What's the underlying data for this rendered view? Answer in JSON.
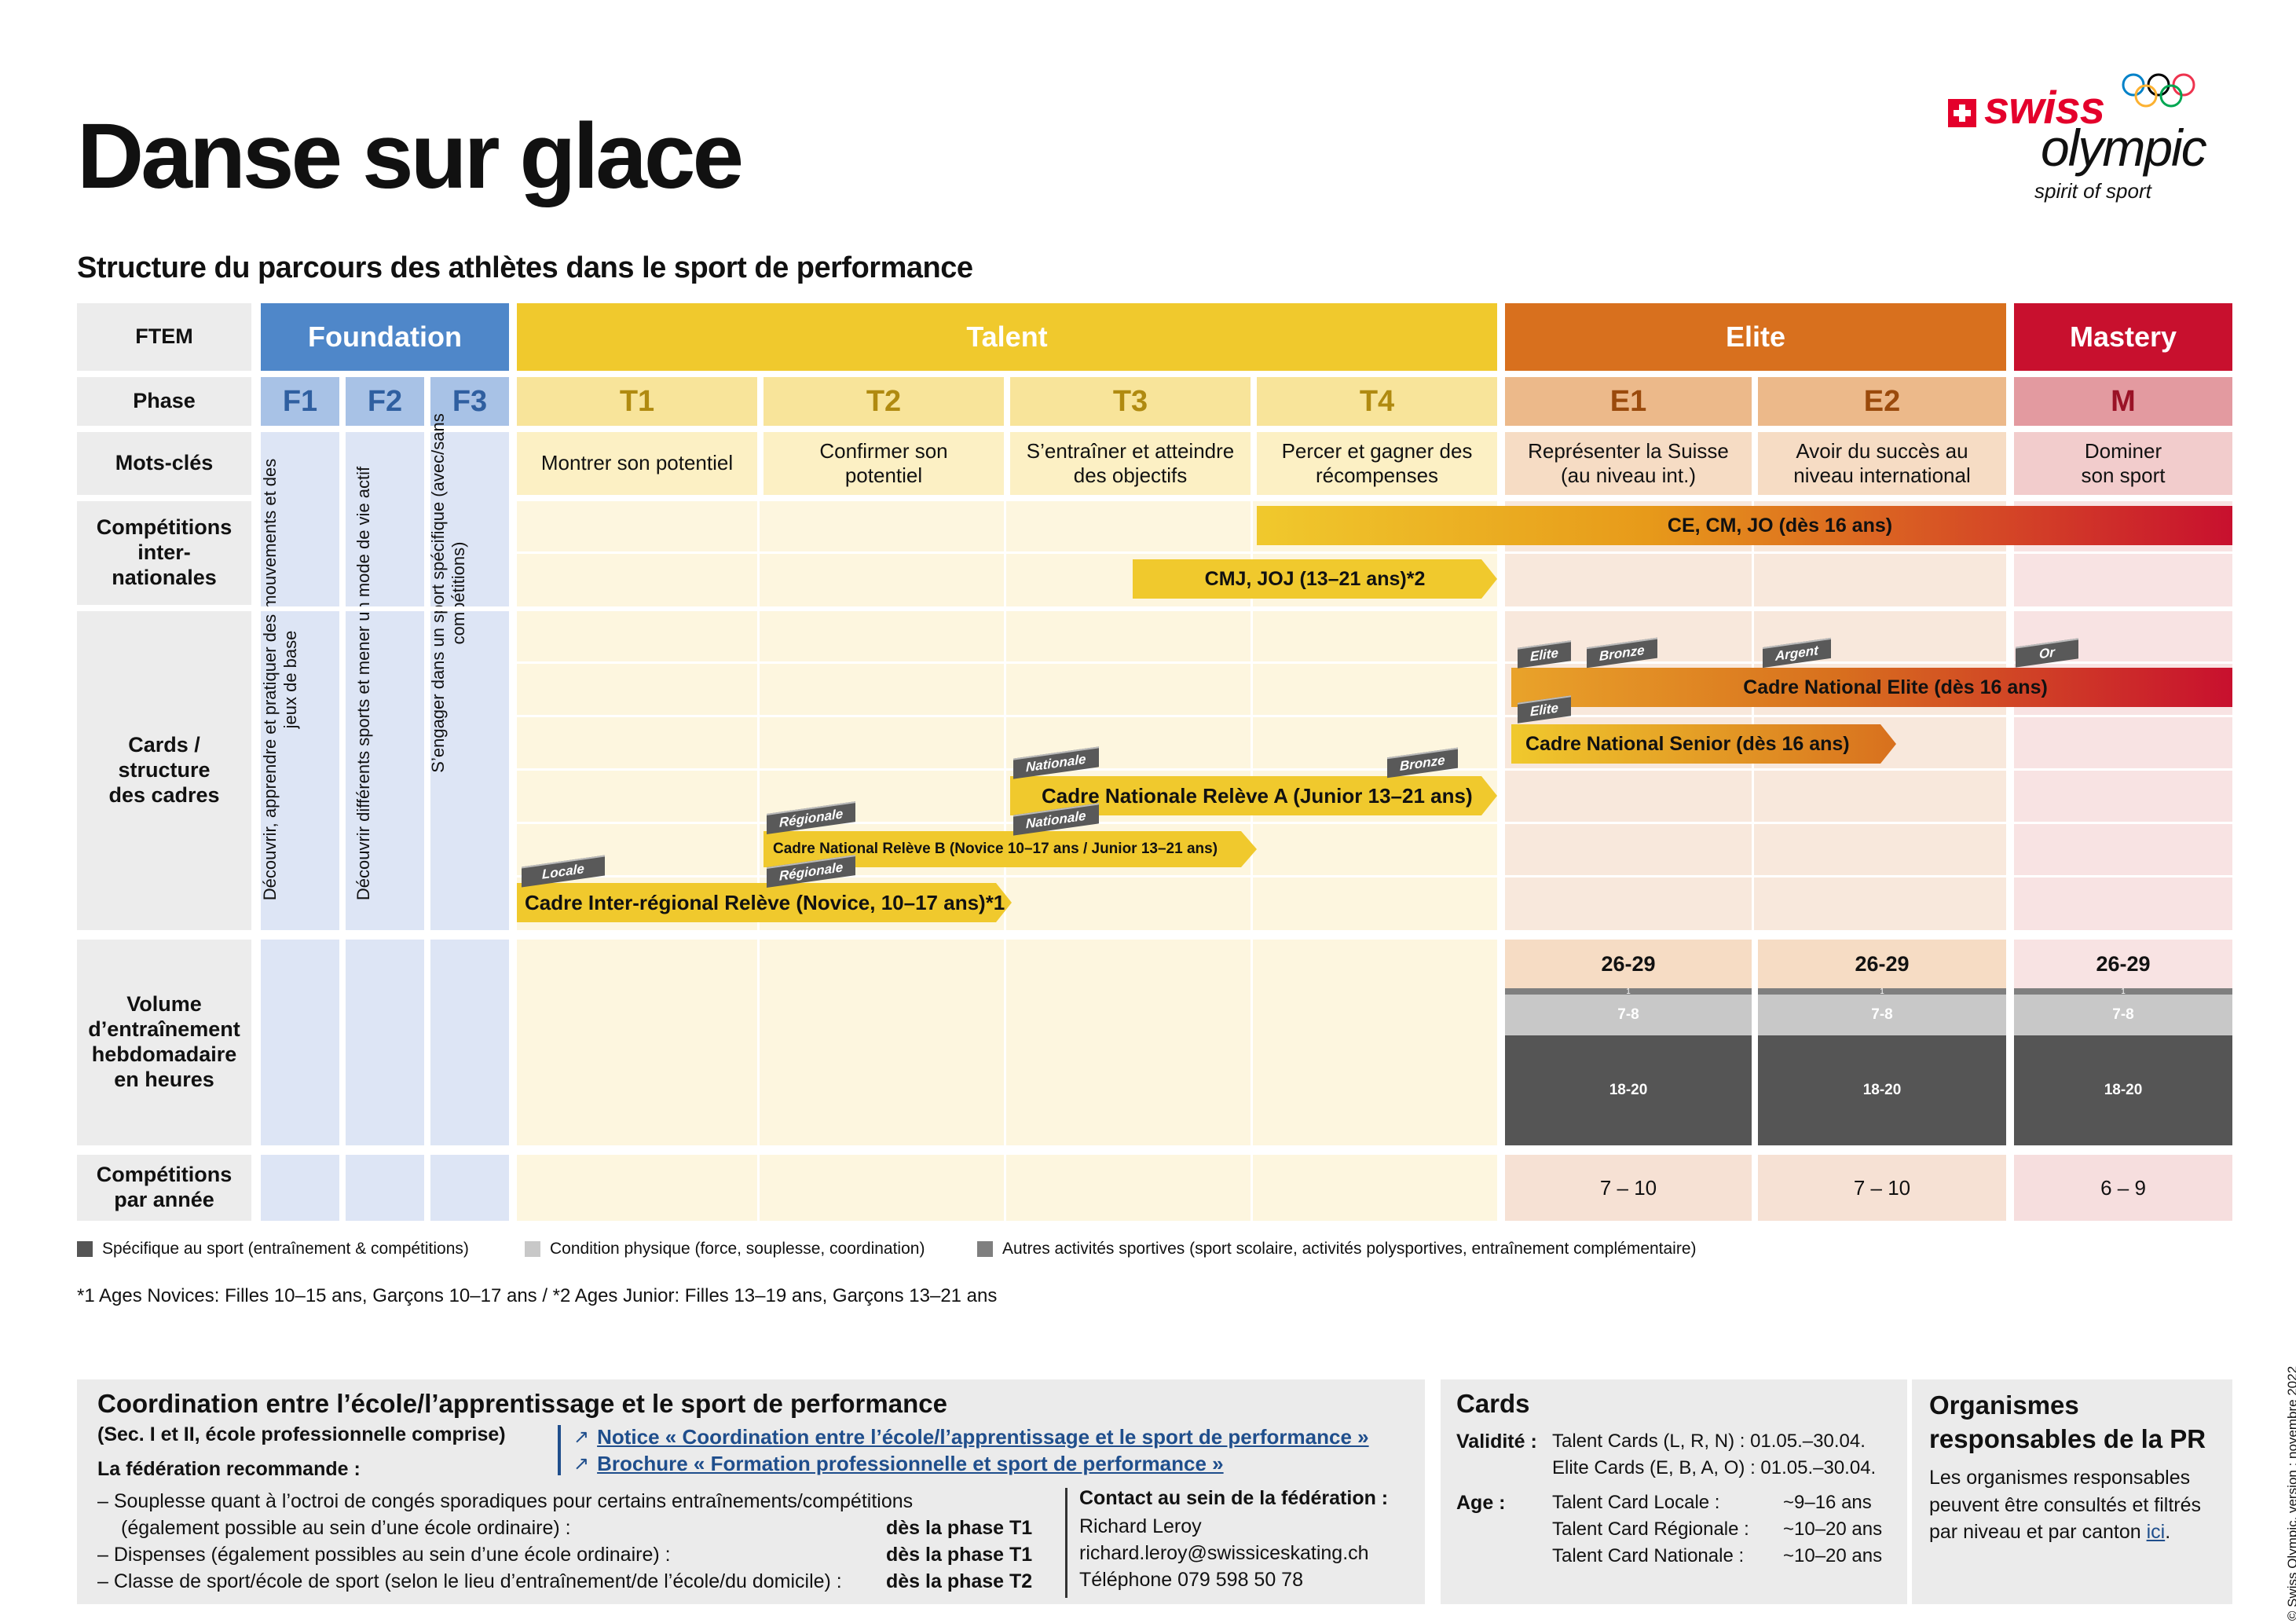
{
  "title": "Danse sur glace",
  "subtitle": "Structure du parcours des athlètes dans le sport de performance",
  "logo": {
    "swiss": "swiss",
    "olympic": "olympic",
    "tagline": "spirit of sport"
  },
  "row_labels": {
    "ftem": "FTEM",
    "phase": "Phase",
    "mots_cles": "Mots-clés",
    "competitions_int": "Compétitions inter-nationales",
    "cards": "Cards / structure des cadres",
    "volume": "Volume d’entraînement hebdomadaire en heures",
    "competitions_annee": "Compétitions par année"
  },
  "ftem_headers": {
    "foundation": "Foundation",
    "talent": "Talent",
    "elite": "Elite",
    "mastery": "Mastery"
  },
  "phases": {
    "f1": "F1",
    "f2": "F2",
    "f3": "F3",
    "t1": "T1",
    "t2": "T2",
    "t3": "T3",
    "t4": "T4",
    "e1": "E1",
    "e2": "E2",
    "m": "M"
  },
  "foundation_vertical": {
    "f1": "Découvrir, apprendre et pratiquer des mouvements et des jeux de base",
    "f2": "Découvrir différents sports et mener un mode de vie actif",
    "f3": "S’engager dans un sport spécifique (avec/sans compétitions)"
  },
  "mots_cles": {
    "t1": "Montrer son potentiel",
    "t2": "Confirmer son potentiel",
    "t3": "S’entraîner et atteindre des objectifs",
    "t4": "Percer et gagner des récompenses",
    "e1": "Représenter la Suisse (au niveau int.)",
    "e2": "Avoir du succès au niveau international",
    "m": "Dominer son sport"
  },
  "competition_bars": {
    "ce": "CE, CM, JO (dès 16 ans)",
    "cmj": "CMJ, JOJ (13–21 ans)*2"
  },
  "card_bars": {
    "elite_nat": "Cadre National Elite (dès 16 ans)",
    "senior": "Cadre National Senior (dès 16 ans)",
    "releve_a": "Cadre Nationale Relève A (Junior 13–21 ans)",
    "releve_b": "Cadre National Relève B (Novice 10–17 ans / Junior 13–21 ans)",
    "inter": "Cadre Inter-régional Relève (Novice, 10–17 ans)*1"
  },
  "card_tags": {
    "elite1": "Elite",
    "bronze1": "Bronze",
    "argent": "Argent",
    "or": "Or",
    "elite2": "Elite",
    "nationale1": "Nationale",
    "bronze2": "Bronze",
    "regionale1": "Régionale",
    "nationale2": "Nationale",
    "regionale2": "Régionale",
    "locale": "Locale"
  },
  "volume": {
    "total": "26-29",
    "other": "1",
    "physical": "7-8",
    "specific": "18-20"
  },
  "competitions_per_year": {
    "e1": "7 – 10",
    "e2": "7 – 10",
    "m": "6 – 9"
  },
  "legend": {
    "specific": "Spécifique au sport (entraînement & compétitions)",
    "physical": "Condition physique (force, souplesse, coordination)",
    "other": "Autres activités sportives (sport scolaire, activités polysportives, entraînement complémentaire)"
  },
  "footnote": "*1 Ages Novices: Filles 10–15 ans, Garçons 10–17 ans / *2 Ages Junior: Filles 13–19 ans, Garçons 13–21 ans",
  "coordination": {
    "title": "Coordination entre l’école/l’apprentissage et le sport de performance",
    "subtitle": "(Sec. I et II, école professionnelle comprise)",
    "link1": "Notice « Coordination entre l’école/l’apprentissage et le sport de performance »",
    "link2": "Brochure « Formation professionnelle et sport de performance »",
    "recommend": "La fédération recommande :",
    "item1a": "– Souplesse quant à l’octroi de congés sporadiques pour certains entraînements/compétitions",
    "item1b": "(également possible au sein d’une école ordinaire) :",
    "item1_phase": "dès la phase T1",
    "item2": "– Dispenses (également possibles au sein d’une école ordinaire) :",
    "item2_phase": "dès la phase T1",
    "item3": "– Classe de sport/école de sport (selon le lieu d’entraînement/de l’école/du domicile) :",
    "item3_phase": "dès la phase T2",
    "contact_title": "Contact au sein de la fédération :",
    "contact_name": "Richard Leroy",
    "contact_email": "richard.leroy@swissiceskating.ch",
    "contact_phone": "Téléphone 079 598 50 78"
  },
  "cards_panel": {
    "title": "Cards",
    "validite_label": "Validité :",
    "validite1": "Talent Cards (L, R, N) :  01.05.–30.04.",
    "validite2": "Elite Cards (E, B, A, O) : 01.05.–30.04.",
    "age_label": "Age :",
    "age1_label": "Talent Card Locale :",
    "age1_value": "~9–16 ans",
    "age2_label": "Talent Card Régionale :",
    "age2_value": "~10–20 ans",
    "age3_label": "Talent Card Nationale :",
    "age3_value": "~10–20 ans"
  },
  "organismes": {
    "title": "Organismes responsables de la PR",
    "text": "Les organismes responsables peuvent être consultés et filtrés par niveau et par canton",
    "link": "ici",
    "end": "."
  },
  "copyright": "© Swiss Olympic, version : novembre 2022"
}
